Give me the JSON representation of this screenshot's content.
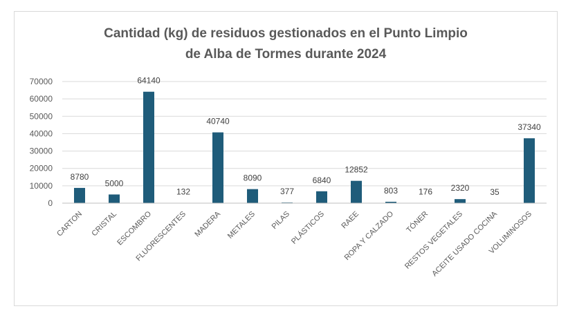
{
  "chart_data": {
    "type": "bar",
    "title_lines": [
      "Cantidad (kg) de residuos gestionados en el Punto Limpio",
      "de Alba de Tormes durante 2024"
    ],
    "categories": [
      "CARTON",
      "CRISTAL",
      "ESCOMBRO",
      "FLUORESCENTES",
      "MADERA",
      "METALES",
      "PILAS",
      "PLÁSTICOS",
      "RAEE",
      "ROPA Y CALZADO",
      "TÓNER",
      "RESTOS VEGETALES",
      "ACEITE USADO COCINA",
      "VOLUMINOSOS"
    ],
    "values": [
      8780,
      5000,
      64140,
      132,
      40740,
      8090,
      377,
      6840,
      12852,
      803,
      176,
      2320,
      35,
      37340
    ],
    "yticks": [
      0,
      10000,
      20000,
      30000,
      40000,
      50000,
      60000,
      70000
    ],
    "ylim": [
      0,
      70000
    ],
    "grid": true,
    "legend": "none",
    "bar_color": "#1f5c7a",
    "grid_color": "#d9d9d9",
    "xlabel": "",
    "ylabel": ""
  }
}
